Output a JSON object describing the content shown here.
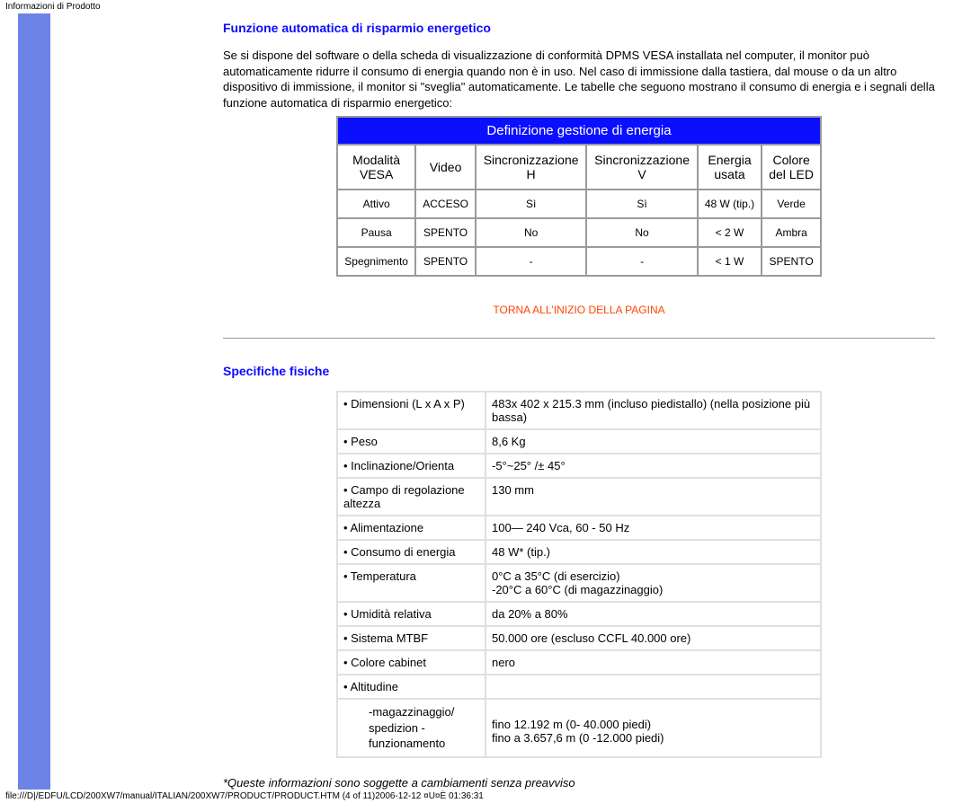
{
  "top_label": "Informazioni di Prodotto",
  "section1": {
    "title": "Funzione automatica di risparmio energetico",
    "paragraph": "Se si dispone del software o della scheda di visualizzazione di conformità DPMS VESA installata nel computer, il monitor può automaticamente ridurre il consumo di energia quando non è in uso. Nel caso di immissione dalla tastiera, dal mouse o da un altro dispositivo di immissione, il monitor si \"sveglia\" automaticamente. Le tabelle che seguono mostrano il consumo di energia e i segnali della funzione automatica di risparmio energetico:"
  },
  "energy_table": {
    "header": "Definizione gestione di energia",
    "columns": [
      "Modalità\nVESA",
      "Video",
      "Sincronizzazione\nH",
      "Sincronizzazione\nV",
      "Energia\nusata",
      "Colore\ndel LED"
    ],
    "rows": [
      [
        "Attivo",
        "ACCESO",
        "Sì",
        "Sì",
        "48 W (tip.)",
        "Verde"
      ],
      [
        "Pausa",
        "SPENTO",
        "No",
        "No",
        "< 2 W",
        "Ambra"
      ],
      [
        "Spegnimento",
        "SPENTO",
        "-",
        "-",
        "< 1 W",
        "SPENTO"
      ]
    ]
  },
  "return_link": "TORNA ALL'INIZIO DELLA PAGINA",
  "section2": {
    "title": "Specifiche fisiche"
  },
  "spec_table": {
    "rows": [
      {
        "label": "• Dimensioni (L x A x P)",
        "value": "483x 402 x 215.3 mm (incluso piedistallo) (nella posizione più bassa)"
      },
      {
        "label": "• Peso",
        "value": "8,6 Kg"
      },
      {
        "label": "• Inclinazione/Orienta",
        "value": "-5°~25° /± 45°"
      },
      {
        "label": "• Campo di regolazione altezza",
        "value": "130 mm"
      },
      {
        "label": "• Alimentazione",
        "value": "100— 240 Vca, 60 - 50 Hz"
      },
      {
        "label": "• Consumo di energia",
        "value": "48 W* (tip.)"
      },
      {
        "label": "• Temperatura",
        "value": "0°C a 35°C (di esercizio)\n-20°C a 60°C (di magazzinaggio)"
      },
      {
        "label": "• Umidità relativa",
        "value": "da 20% a 80%"
      },
      {
        "label": "• Sistema MTBF",
        "value": "50.000 ore (escluso CCFL 40.000 ore)"
      },
      {
        "label": "• Colore cabinet",
        "value": "nero"
      },
      {
        "label": "• Altitudine",
        "value": ""
      }
    ],
    "sub_row": {
      "label": "-magazzinaggio/\nspedizion -\nfunzionamento",
      "value": "\nfino 12.192 m (0- 40.000 piedi)\nfino a 3.657,6 m (0 -12.000 piedi)"
    }
  },
  "footnote": "*Queste informazioni sono soggette a cambiamenti senza preavviso",
  "bottom_path": "file:///D|/EDFU/LCD/200XW7/manual/ITALIAN/200XW7/PRODUCT/PRODUCT.HTM (4 of 11)2006-12-12 ¤U¤È 01:36:31"
}
